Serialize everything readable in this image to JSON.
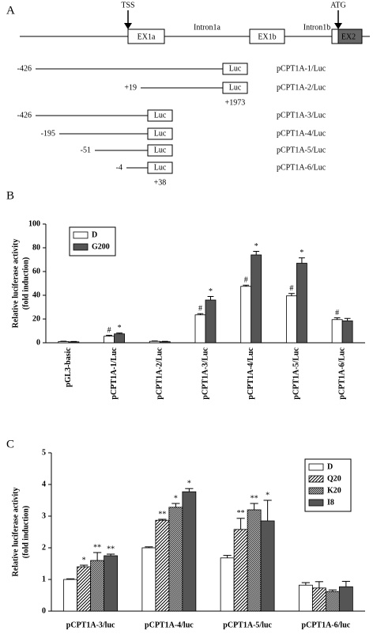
{
  "diagram": {
    "panel_label": "A",
    "tss": "TSS",
    "atg": "ATG",
    "exons": [
      "EX1a",
      "EX1b",
      "EX2"
    ],
    "introns": [
      "Intron1a",
      "Intron1b"
    ],
    "constructs": [
      {
        "start": "-426",
        "box": "Luc",
        "name": "pCPT1A-1/Luc"
      },
      {
        "start": "+19",
        "box": "Luc",
        "end": "+1973",
        "name": "pCPT1A-2/Luc"
      },
      {
        "start": "-426",
        "box": "Luc",
        "name": "pCPT1A-3/Luc"
      },
      {
        "start": "-195",
        "box": "Luc",
        "name": "pCPT1A-4/Luc"
      },
      {
        "start": "-51",
        "box": "Luc",
        "name": "pCPT1A-5/Luc"
      },
      {
        "start": "-4",
        "box": "Luc",
        "end": "+38",
        "name": "pCPT1A-6/Luc"
      }
    ]
  },
  "chart_data": [
    {
      "type": "bar",
      "panel_label": "B",
      "ylabel": [
        "Relative luciferase activity",
        "(fold induction)"
      ],
      "categories": [
        "pGL3-basic",
        "pCPT1A-1/Luc",
        "pCPT1A-2/Luc",
        "pCPT1A-3/Luc",
        "pCPT1A-4/Luc",
        "pCPT1A-5/Luc",
        "pCPT1A-6/Luc"
      ],
      "series": [
        {
          "name": "D",
          "color": "#ffffff",
          "values": [
            1,
            5.5,
            1.2,
            23.5,
            47.5,
            39.5,
            19.5
          ],
          "errors": [
            0.3,
            0.8,
            0.3,
            1,
            1,
            2,
            1.5
          ],
          "annotations": [
            null,
            "#",
            null,
            "#",
            "#",
            "#",
            "#"
          ]
        },
        {
          "name": "G200",
          "color": "#555555",
          "values": [
            0.8,
            7.5,
            0.9,
            36,
            74,
            67,
            18.5
          ],
          "errors": [
            0.3,
            0.7,
            0.3,
            3,
            3,
            4.5,
            2
          ],
          "annotations": [
            null,
            "*",
            null,
            "*",
            "*",
            "*",
            null
          ]
        }
      ],
      "ylim": [
        0,
        100
      ],
      "yticks": [
        0,
        20,
        40,
        60,
        80,
        100
      ],
      "legend": "upper left"
    },
    {
      "type": "bar",
      "panel_label": "C",
      "ylabel": [
        "Relative luciferase activity",
        "(fold induction)"
      ],
      "categories": [
        "pCPT1A-3/luc",
        "pCPT1A-4/luc",
        "pCPT1A-5/luc",
        "pCPT1A-6/luc"
      ],
      "series": [
        {
          "name": "D",
          "color": "#ffffff",
          "values": [
            1.0,
            2.0,
            1.68,
            0.82
          ],
          "errors": [
            0.02,
            0.03,
            0.08,
            0.08
          ]
        },
        {
          "name": "Q20",
          "color": "#000000",
          "hatch": "sparse",
          "values": [
            1.4,
            2.87,
            2.58,
            0.73
          ],
          "errors": [
            0.05,
            0.03,
            0.35,
            0.2
          ],
          "annotations": [
            "*",
            "**",
            "**",
            null
          ]
        },
        {
          "name": "K20",
          "color": "#000000",
          "hatch": "dense",
          "values": [
            1.6,
            3.28,
            3.2,
            0.62
          ],
          "errors": [
            0.25,
            0.12,
            0.2,
            0.05
          ],
          "annotations": [
            "**",
            "*",
            "**",
            null
          ]
        },
        {
          "name": "I8",
          "color": "#555555",
          "values": [
            1.75,
            3.77,
            2.85,
            0.77
          ],
          "errors": [
            0.05,
            0.1,
            0.65,
            0.17
          ],
          "annotations": [
            "**",
            "*",
            "*",
            null
          ]
        }
      ],
      "ylim": [
        0,
        5
      ],
      "yticks": [
        0,
        1,
        2,
        3,
        4,
        5
      ],
      "legend": "upper right"
    }
  ]
}
